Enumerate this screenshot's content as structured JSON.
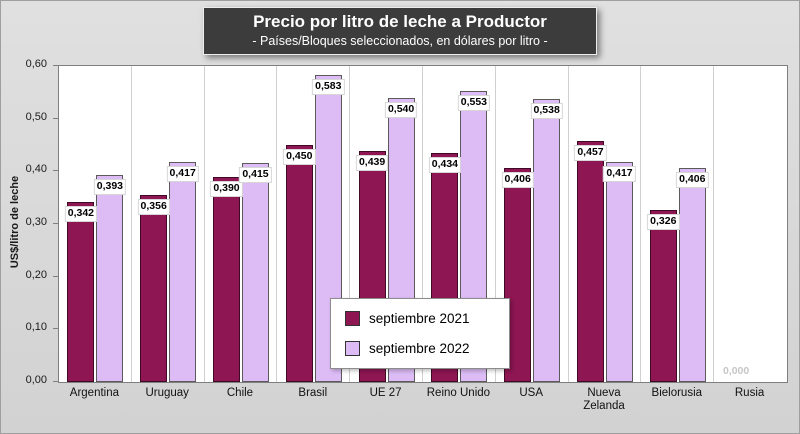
{
  "chart_data": {
    "type": "bar",
    "title": "Precio por litro de leche a Productor",
    "subtitle": "- Países/Bloques seleccionados, en dólares por litro -",
    "ylabel": "US$/litro de leche",
    "ylim": [
      0,
      0.6
    ],
    "ytick_step": 0.1,
    "ytick_labels": [
      "0,00",
      "0,10",
      "0,20",
      "0,30",
      "0,40",
      "0,50",
      "0,60"
    ],
    "grid": "vertical",
    "legend_position": "inside-bottom-center",
    "categories": [
      "Argentina",
      "Uruguay",
      "Chile",
      "Brasil",
      "UE 27",
      "Reino Unido",
      "USA",
      "Nueva Zelanda",
      "Bielorusia",
      "Rusia"
    ],
    "series": [
      {
        "name": "septiembre 2021",
        "color": "#8e1653",
        "values": [
          0.342,
          0.356,
          0.39,
          0.45,
          0.439,
          0.434,
          0.406,
          0.457,
          0.326,
          0
        ]
      },
      {
        "name": "septiembre 2022",
        "color": "#ddbcf5",
        "values": [
          0.393,
          0.417,
          0.415,
          0.583,
          0.54,
          0.553,
          0.538,
          0.417,
          0.406,
          0
        ]
      }
    ],
    "value_labels": [
      [
        "0,342",
        "0,356",
        "0,390",
        "0,450",
        "0,439",
        "0,434",
        "0,406",
        "0,457",
        "0,326",
        "0,000"
      ],
      [
        "0,393",
        "0,417",
        "0,415",
        "0,583",
        "0,540",
        "0,553",
        "0,538",
        "0,417",
        "0,406",
        ""
      ]
    ]
  },
  "colors": {
    "background": "#d6d6d6",
    "plot_background": "#ffffff",
    "title_box_background": "#3c3c3c",
    "series_2021": "#8e1653",
    "series_2022": "#ddbcf5"
  }
}
